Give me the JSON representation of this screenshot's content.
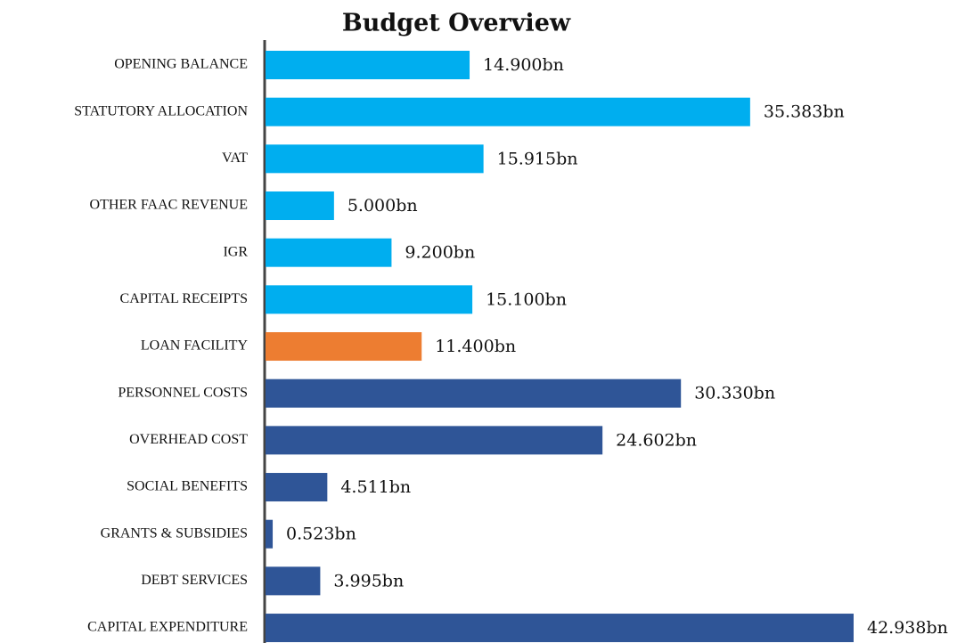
{
  "chart_data": {
    "type": "bar",
    "orientation": "horizontal",
    "title": "Budget Overview",
    "categories": [
      "OPENING BALANCE",
      "STATUTORY ALLOCATION",
      "VAT",
      "OTHER FAAC REVENUE",
      "IGR",
      "CAPITAL RECEIPTS",
      "LOAN FACILITY",
      "PERSONNEL COSTS",
      "OVERHEAD COST",
      "SOCIAL BENEFITS",
      "GRANTS & SUBSIDIES",
      "DEBT SERVICES",
      "CAPITAL EXPENDITURE"
    ],
    "values": [
      14.9,
      35.383,
      15.915,
      5.0,
      9.2,
      15.1,
      11.4,
      30.33,
      24.602,
      4.511,
      0.523,
      3.995,
      42.938
    ],
    "value_labels": [
      "14.900bn",
      "35.383bn",
      "15.915bn",
      "5.000bn",
      "9.200bn",
      "15.100bn",
      "11.400bn",
      "30.330bn",
      "24.602bn",
      "4.511bn",
      "0.523bn",
      "3.995bn",
      "42.938bn"
    ],
    "colors": [
      "#00aeef",
      "#00aeef",
      "#00aeef",
      "#00aeef",
      "#00aeef",
      "#00aeef",
      "#ed7d31",
      "#2f5597",
      "#2f5597",
      "#2f5597",
      "#2f5597",
      "#2f5597",
      "#2f5597"
    ]
  }
}
